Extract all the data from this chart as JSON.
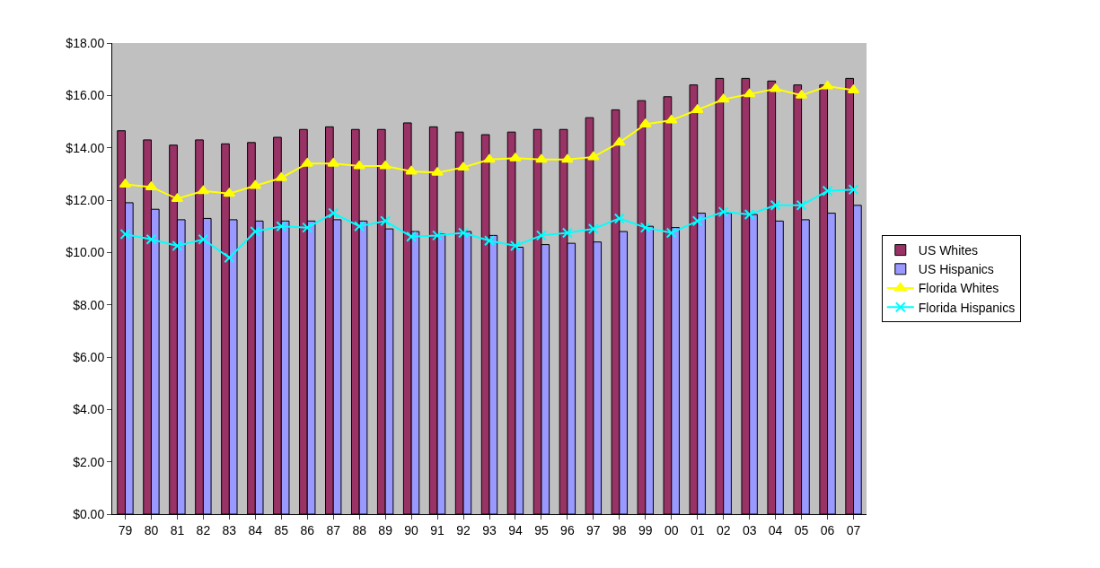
{
  "chart_data": {
    "type": "bar",
    "categories": [
      "79",
      "80",
      "81",
      "82",
      "83",
      "84",
      "85",
      "86",
      "87",
      "88",
      "89",
      "90",
      "91",
      "92",
      "93",
      "94",
      "95",
      "96",
      "97",
      "98",
      "99",
      "00",
      "01",
      "02",
      "03",
      "04",
      "05",
      "06",
      "07"
    ],
    "series": [
      {
        "name": "US Whites",
        "color": "#993366",
        "values": [
          14.65,
          14.3,
          14.1,
          14.3,
          14.15,
          14.2,
          14.4,
          14.7,
          14.8,
          14.7,
          14.7,
          14.95,
          14.8,
          14.6,
          14.5,
          14.6,
          14.7,
          14.7,
          15.15,
          15.45,
          15.8,
          15.95,
          16.4,
          16.65,
          16.65,
          16.55,
          16.4,
          16.4,
          16.65
        ]
      },
      {
        "name": "US Hispanics",
        "color": "#9999ff",
        "values": [
          11.9,
          11.65,
          11.25,
          11.3,
          11.25,
          11.2,
          11.2,
          11.2,
          11.25,
          11.2,
          10.9,
          10.8,
          10.7,
          10.8,
          10.65,
          10.2,
          10.3,
          10.35,
          10.4,
          10.8,
          11.0,
          10.95,
          11.5,
          11.5,
          11.45,
          11.2,
          11.25,
          11.5,
          11.8
        ]
      },
      {
        "name": "Florida Whites",
        "type": "line",
        "marker": "triangle",
        "color": "#ffff00",
        "values": [
          12.6,
          12.5,
          12.05,
          12.35,
          12.25,
          12.55,
          12.85,
          13.4,
          13.4,
          13.3,
          13.3,
          13.1,
          13.05,
          13.25,
          13.55,
          13.6,
          13.55,
          13.55,
          13.65,
          14.2,
          14.9,
          15.05,
          15.45,
          15.85,
          16.05,
          16.25,
          16.0,
          16.35,
          16.2
        ]
      },
      {
        "name": "Florida Hispanics",
        "type": "line",
        "marker": "cross",
        "color": "#00ffff",
        "values": [
          10.7,
          10.5,
          10.25,
          10.5,
          9.8,
          10.8,
          11.0,
          10.95,
          11.5,
          11.0,
          11.2,
          10.6,
          10.65,
          10.75,
          10.45,
          10.25,
          10.65,
          10.75,
          10.9,
          11.3,
          10.95,
          10.75,
          11.2,
          11.55,
          11.45,
          11.8,
          11.8,
          12.35,
          12.4
        ]
      }
    ],
    "ylim": [
      0,
      18
    ],
    "yticks": [
      {
        "value": 0,
        "label": "$0.00"
      },
      {
        "value": 2,
        "label": "$2.00"
      },
      {
        "value": 4,
        "label": "$4.00"
      },
      {
        "value": 6,
        "label": "$6.00"
      },
      {
        "value": 8,
        "label": "$8.00"
      },
      {
        "value": 10,
        "label": "$10.00"
      },
      {
        "value": 12,
        "label": "$12.00"
      },
      {
        "value": 14,
        "label": "$14.00"
      },
      {
        "value": 16,
        "label": "$16.00"
      },
      {
        "value": 18,
        "label": "$18.00"
      }
    ],
    "grid": false,
    "legend": "right"
  }
}
